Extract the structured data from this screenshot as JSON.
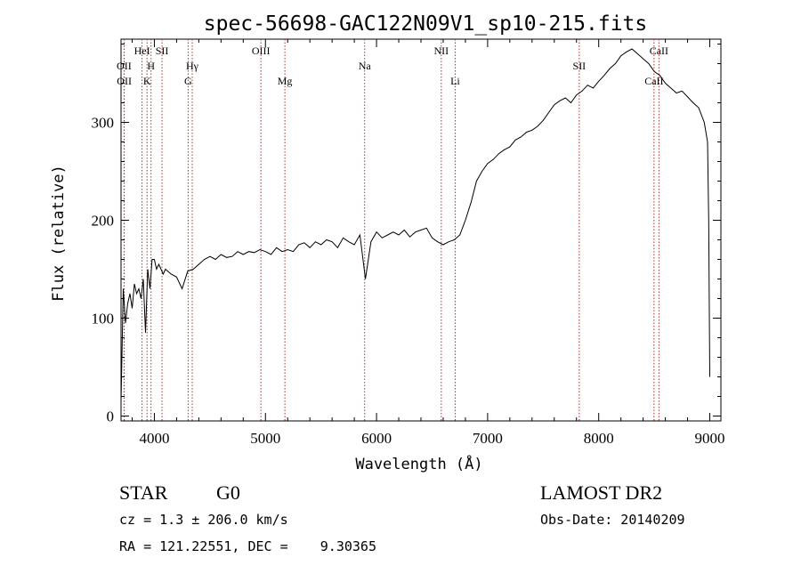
{
  "chart_data": {
    "type": "line",
    "title": "spec-56698-GAC122N09V1_sp10-215.fits",
    "xlabel": "Wavelength (Å)",
    "ylabel": "Flux (relative)",
    "xlim": [
      3700,
      9100
    ],
    "ylim": [
      -5,
      385
    ],
    "xticks": [
      4000,
      5000,
      6000,
      7000,
      8000,
      9000
    ],
    "yticks": [
      0,
      100,
      200,
      300
    ],
    "grid": false,
    "series": [
      {
        "color": "#000000",
        "x": [
          3700,
          3720,
          3740,
          3760,
          3780,
          3800,
          3820,
          3840,
          3860,
          3880,
          3900,
          3920,
          3940,
          3960,
          3980,
          4000,
          4020,
          4040,
          4060,
          4080,
          4100,
          4150,
          4200,
          4250,
          4300,
          4350,
          4400,
          4450,
          4500,
          4550,
          4600,
          4650,
          4700,
          4750,
          4800,
          4850,
          4900,
          4950,
          5000,
          5050,
          5100,
          5150,
          5200,
          5250,
          5300,
          5350,
          5400,
          5450,
          5500,
          5550,
          5600,
          5650,
          5700,
          5750,
          5800,
          5850,
          5900,
          5950,
          6000,
          6050,
          6100,
          6150,
          6200,
          6250,
          6300,
          6350,
          6400,
          6450,
          6500,
          6550,
          6600,
          6650,
          6700,
          6750,
          6800,
          6850,
          6900,
          6950,
          7000,
          7050,
          7100,
          7150,
          7200,
          7250,
          7300,
          7350,
          7400,
          7450,
          7500,
          7550,
          7600,
          7650,
          7700,
          7750,
          7800,
          7850,
          7900,
          7950,
          8000,
          8050,
          8100,
          8150,
          8200,
          8250,
          8300,
          8350,
          8400,
          8450,
          8500,
          8550,
          8600,
          8650,
          8700,
          8750,
          8800,
          8850,
          8900,
          8950,
          8980,
          8990,
          9000
        ],
        "values": [
          15,
          130,
          95,
          115,
          125,
          110,
          135,
          125,
          130,
          120,
          140,
          85,
          150,
          130,
          160,
          160,
          150,
          155,
          150,
          145,
          150,
          145,
          142,
          130,
          148,
          150,
          155,
          160,
          163,
          160,
          165,
          162,
          163,
          168,
          165,
          168,
          167,
          170,
          168,
          165,
          172,
          168,
          170,
          168,
          175,
          177,
          172,
          178,
          175,
          180,
          178,
          172,
          182,
          178,
          175,
          185,
          140,
          178,
          188,
          182,
          185,
          188,
          185,
          190,
          183,
          188,
          190,
          192,
          182,
          178,
          175,
          178,
          180,
          185,
          200,
          218,
          240,
          250,
          258,
          262,
          268,
          272,
          275,
          282,
          285,
          290,
          292,
          296,
          302,
          310,
          318,
          322,
          325,
          320,
          328,
          332,
          338,
          335,
          342,
          348,
          355,
          360,
          368,
          372,
          375,
          370,
          365,
          360,
          352,
          348,
          340,
          335,
          330,
          332,
          326,
          320,
          315,
          300,
          280,
          200,
          40
        ]
      }
    ],
    "lines": [
      {
        "x": 3727,
        "label": "OII",
        "row": 2
      },
      {
        "x": 3729,
        "label": "OII",
        "row": 3
      },
      {
        "x": 3889,
        "label": "HeI",
        "row": 1
      },
      {
        "x": 3934,
        "label": "K",
        "row": 3
      },
      {
        "x": 3970,
        "label": "H",
        "row": 2
      },
      {
        "x": 4069,
        "label": "SII",
        "row": 1
      },
      {
        "x": 4304,
        "label": "G",
        "row": 3
      },
      {
        "x": 4341,
        "label": "Hγ",
        "row": 2
      },
      {
        "x": 4959,
        "label": "OIII",
        "row": 1
      },
      {
        "x": 5175,
        "label": "Mg",
        "row": 3
      },
      {
        "x": 5893,
        "label": "Na",
        "row": 2
      },
      {
        "x": 6583,
        "label": "NII",
        "row": 1
      },
      {
        "x": 6708,
        "label": "Li",
        "row": 3
      },
      {
        "x": 7825,
        "label": "SII",
        "row": 2
      },
      {
        "x": 8498,
        "label": "CaII",
        "row": 3
      },
      {
        "x": 8542,
        "label": "CaII",
        "row": 1
      }
    ]
  },
  "info": {
    "class": "STAR",
    "subclass": "G0",
    "survey": "LAMOST DR2",
    "cz": "cz = 1.3 ± 206.0 km/s",
    "obs_date": "Obs-Date: 20140209",
    "coords": "RA = 121.22551, DEC =    9.30365"
  }
}
